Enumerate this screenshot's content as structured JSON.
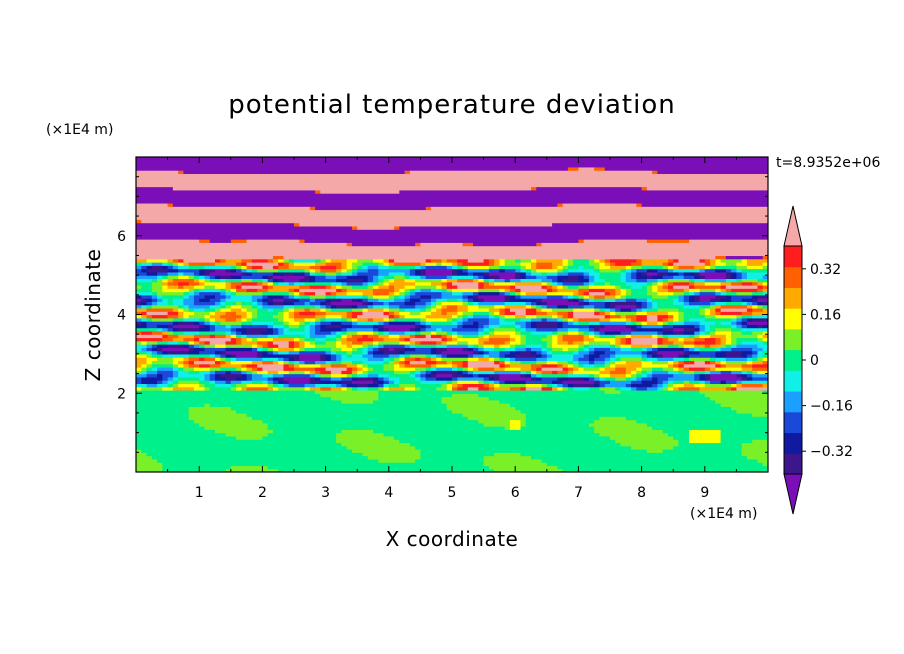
{
  "chart_data": {
    "type": "heatmap",
    "title": "potential temperature deviation",
    "xlabel": "X coordinate",
    "ylabel": "Z coordinate",
    "x_unit": "(×1E4 m)",
    "y_unit": "(×1E4 m)",
    "time_label": "t=8.9352e+06",
    "xlim": [
      0,
      10
    ],
    "ylim": [
      0,
      8
    ],
    "x_ticks": [
      "1",
      "2",
      "3",
      "4",
      "5",
      "6",
      "7",
      "8",
      "9"
    ],
    "y_ticks": [
      "2",
      "4",
      "6"
    ],
    "colorbar": {
      "levels": [
        -0.48,
        -0.4,
        -0.32,
        -0.24,
        -0.16,
        -0.08,
        0,
        0.08,
        0.16,
        0.24,
        0.32,
        0.4,
        0.48
      ],
      "colors": [
        "#7a0fb8",
        "#3c168c",
        "#0f1aa0",
        "#1a48d8",
        "#1aa0ff",
        "#10f0e6",
        "#00f08c",
        "#7af028",
        "#ffff00",
        "#ffaa00",
        "#ff6000",
        "#ff1e1e",
        "#f4a8a8"
      ],
      "tick_labels": [
        "0.32",
        "0.16",
        "0",
        "−0.16",
        "−0.32"
      ],
      "tick_values": [
        0.32,
        0.16,
        0,
        -0.16,
        -0.32
      ]
    },
    "fields": {
      "lower_layer": {
        "z_range": [
          0,
          2.05
        ],
        "typical_values": [
          0,
          0.08
        ],
        "max_value": 0.16
      },
      "mixed_layer": {
        "z_range": [
          2.05,
          5.4
        ],
        "value_range": [
          -0.48,
          0.48
        ]
      },
      "upper_layer": {
        "z_range": [
          5.4,
          8
        ],
        "typical_values": [
          -0.48,
          0.48
        ]
      }
    }
  }
}
